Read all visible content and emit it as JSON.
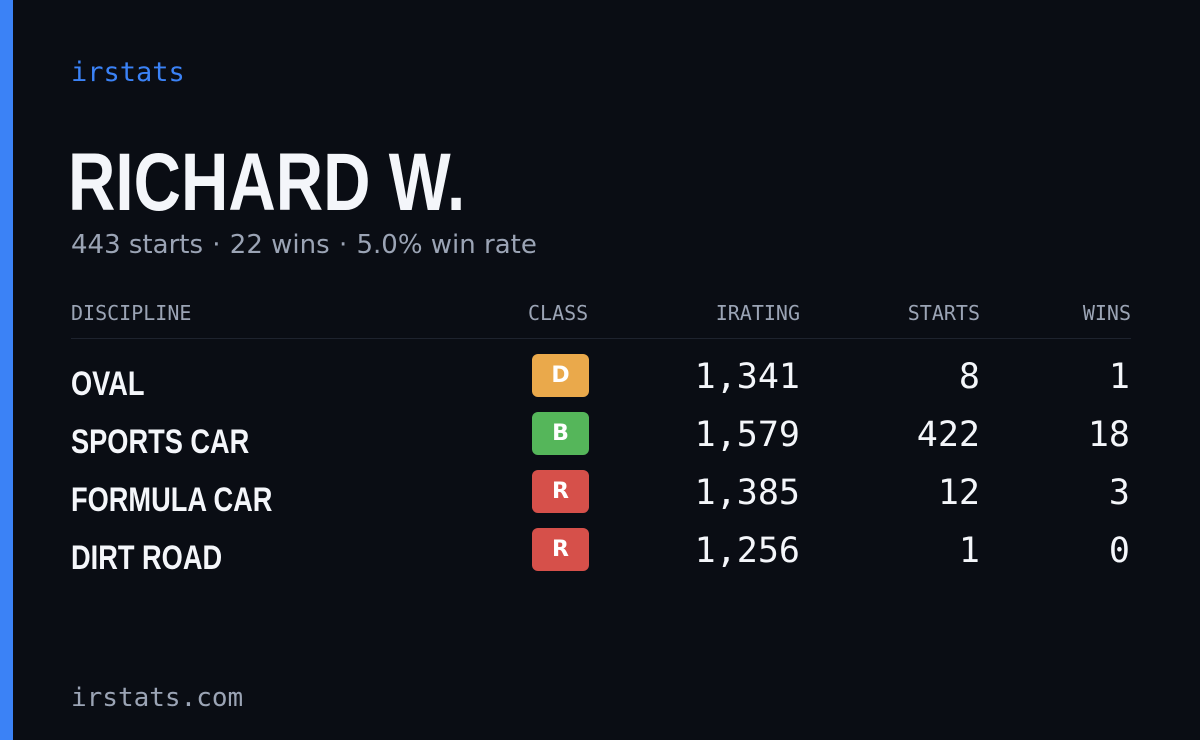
{
  "brand": {
    "name": "irstats",
    "domain": "irstats.com"
  },
  "colors": {
    "accent": "#3b82f6",
    "class_D": "#eaa94b",
    "class_B": "#55b65a",
    "class_R": "#d6504a"
  },
  "profile": {
    "name": "RICHARD W.",
    "summary": {
      "starts": "443 starts",
      "wins": "22 wins",
      "win_rate": "5.0% win rate",
      "separator": "·"
    }
  },
  "table": {
    "headers": {
      "discipline": "DISCIPLINE",
      "class": "CLASS",
      "irating": "IRATING",
      "starts": "STARTS",
      "wins": "WINS"
    },
    "rows": [
      {
        "discipline": "OVAL",
        "class": "D",
        "irating": "1,341",
        "starts": "8",
        "wins": "1"
      },
      {
        "discipline": "SPORTS CAR",
        "class": "B",
        "irating": "1,579",
        "starts": "422",
        "wins": "18"
      },
      {
        "discipline": "FORMULA CAR",
        "class": "R",
        "irating": "1,385",
        "starts": "12",
        "wins": "3"
      },
      {
        "discipline": "DIRT ROAD",
        "class": "R",
        "irating": "1,256",
        "starts": "1",
        "wins": "0"
      }
    ]
  }
}
